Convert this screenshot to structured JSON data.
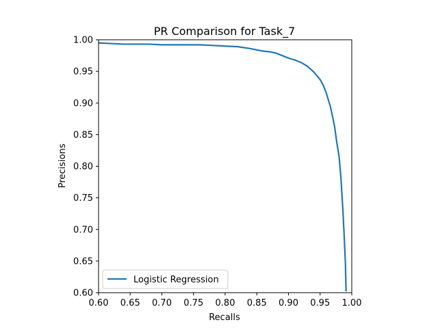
{
  "chart_data": {
    "type": "line",
    "title": "PR Comparison for Task_7",
    "xlabel": "Recalls",
    "ylabel": "Precisions",
    "xlim": [
      0.6,
      1.0
    ],
    "ylim": [
      0.6,
      1.0
    ],
    "xticks": [
      0.6,
      0.65,
      0.7,
      0.75,
      0.8,
      0.85,
      0.9,
      0.95,
      1.0
    ],
    "yticks": [
      0.6,
      0.65,
      0.7,
      0.75,
      0.8,
      0.85,
      0.9,
      0.95,
      1.0
    ],
    "xtick_labels": [
      "0.60",
      "0.65",
      "0.70",
      "0.75",
      "0.80",
      "0.85",
      "0.90",
      "0.95",
      "1.00"
    ],
    "ytick_labels": [
      "0.60",
      "0.65",
      "0.70",
      "0.75",
      "0.80",
      "0.85",
      "0.90",
      "0.95",
      "1.00"
    ],
    "grid": false,
    "legend_position": "lower-left",
    "colors": {
      "series": "#1f77b4",
      "axes": "#000000",
      "legend_border": "#cccccc"
    },
    "series": [
      {
        "name": "Logistic Regression",
        "x": [
          0.6,
          0.62,
          0.64,
          0.66,
          0.68,
          0.7,
          0.72,
          0.74,
          0.76,
          0.78,
          0.8,
          0.82,
          0.84,
          0.86,
          0.87,
          0.88,
          0.89,
          0.9,
          0.91,
          0.92,
          0.93,
          0.94,
          0.945,
          0.95,
          0.955,
          0.96,
          0.963,
          0.966,
          0.97,
          0.973,
          0.976,
          0.98,
          0.983,
          0.986,
          0.988,
          0.99,
          0.991
        ],
        "y": [
          0.995,
          0.994,
          0.993,
          0.993,
          0.993,
          0.992,
          0.992,
          0.992,
          0.992,
          0.991,
          0.99,
          0.989,
          0.986,
          0.982,
          0.981,
          0.979,
          0.975,
          0.971,
          0.968,
          0.964,
          0.958,
          0.949,
          0.943,
          0.937,
          0.928,
          0.915,
          0.905,
          0.895,
          0.877,
          0.862,
          0.84,
          0.815,
          0.78,
          0.73,
          0.69,
          0.645,
          0.602
        ]
      }
    ]
  }
}
